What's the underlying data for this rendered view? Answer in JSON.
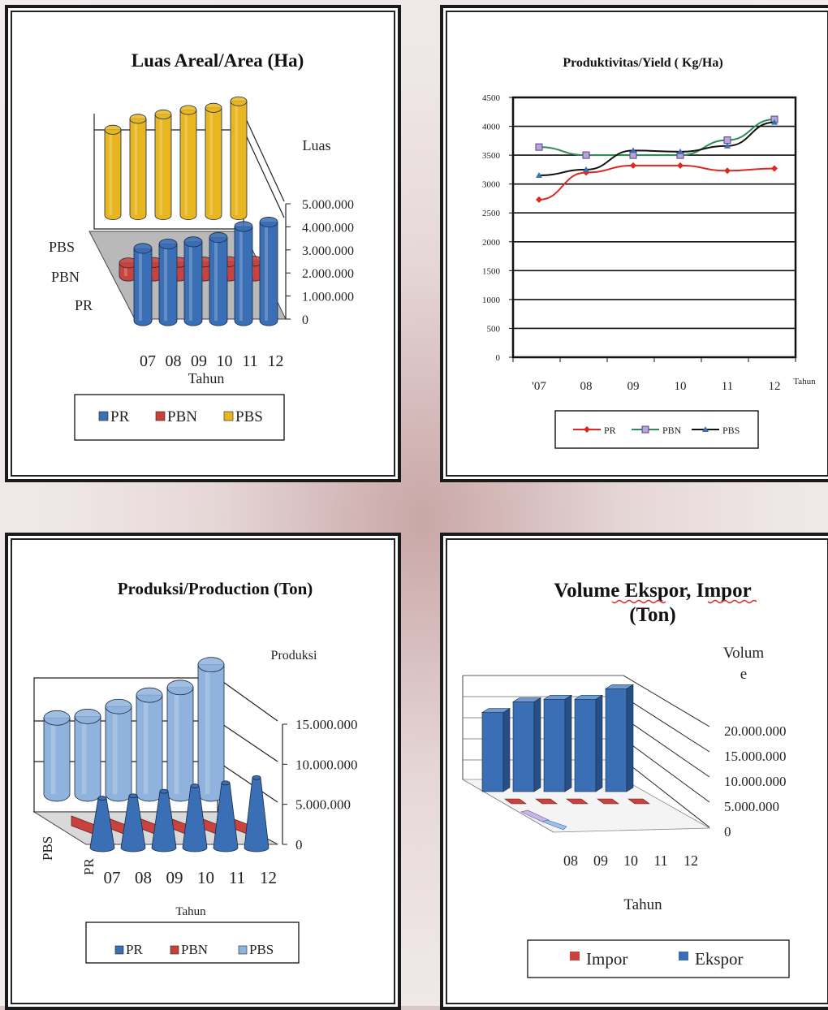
{
  "colors": {
    "pr": "#3a6fb5",
    "pbn": "#c8433d",
    "pbs_area": "#e7b620",
    "pbs_prod": "#8fb3dc",
    "line_pr": "#e0261f",
    "line_pbn": "#2e8b57",
    "line_pbs": "#111111",
    "impor": "#c8433d",
    "ekspor": "#3a6fb5"
  },
  "chart_data": [
    {
      "type": "bar",
      "style": "3d-cylinder",
      "title": "Luas Areal/Area (Ha)",
      "xlabel": "Tahun",
      "ylabel": "Luas",
      "categories": [
        "07",
        "08",
        "09",
        "10",
        "11",
        "12"
      ],
      "depth_labels": [
        "PBS",
        "PBN",
        "PR"
      ],
      "ytick_labels": [
        "5.000.000",
        "4.000.000",
        "3.000.000",
        "2.000.000",
        "1.000.000",
        "0"
      ],
      "ylim": [
        0,
        5000000
      ],
      "series": [
        {
          "name": "PR",
          "values": [
            3300000,
            3500000,
            3600000,
            3800000,
            4300000,
            4500000
          ]
        },
        {
          "name": "PBN",
          "values": [
            600000,
            620000,
            630000,
            640000,
            660000,
            680000
          ]
        },
        {
          "name": "PBS",
          "values": [
            3900000,
            4400000,
            4600000,
            4800000,
            4900000,
            5200000
          ]
        }
      ],
      "legend": [
        "PR",
        "PBN",
        "PBS"
      ],
      "legend_position": "bottom"
    },
    {
      "type": "line",
      "title": "Produktivitas/Yield ( Kg/Ha)",
      "xlabel": "Tahun",
      "categories": [
        "'07",
        "08",
        "09",
        "10",
        "11",
        "12"
      ],
      "ytick_labels": [
        "4500",
        "4000",
        "3500",
        "3000",
        "2500",
        "2000",
        "1500",
        "1000",
        "500",
        "0"
      ],
      "ylim": [
        0,
        4500
      ],
      "grid": true,
      "series": [
        {
          "name": "PR",
          "values": [
            2730,
            3200,
            3320,
            3320,
            3230,
            3270
          ]
        },
        {
          "name": "PBN",
          "values": [
            3640,
            3500,
            3500,
            3500,
            3760,
            4120
          ]
        },
        {
          "name": "PBS",
          "values": [
            3150,
            3250,
            3580,
            3560,
            3660,
            4070
          ]
        }
      ],
      "legend": [
        "PR",
        "PBN",
        "PBS"
      ],
      "legend_position": "bottom"
    },
    {
      "type": "bar",
      "style": "3d-cylinder",
      "title": "Produksi/Production (Ton)",
      "xlabel": "Tahun",
      "ylabel": "Produksi",
      "categories": [
        "07",
        "08",
        "09",
        "10",
        "11",
        "12"
      ],
      "depth_labels": [
        "PBS",
        "PR"
      ],
      "ytick_labels": [
        "15.000.000",
        "10.000.000",
        "5.000.000",
        "0"
      ],
      "ylim": [
        0,
        20000000
      ],
      "series": [
        {
          "name": "PR",
          "values": [
            6500000,
            6800000,
            7400000,
            8100000,
            8500000,
            9200000
          ]
        },
        {
          "name": "PBN",
          "values": [
            2100000,
            2200000,
            2300000,
            2400000,
            2500000,
            2600000
          ]
        },
        {
          "name": "PBS",
          "values": [
            10000000,
            10200000,
            11500000,
            13000000,
            14000000,
            17000000
          ]
        }
      ],
      "legend": [
        "PR",
        "PBN",
        "PBS"
      ],
      "legend_position": "bottom"
    },
    {
      "type": "bar",
      "style": "3d-column",
      "title_line1": "Volume Ekspor, Impor",
      "title_line2": "(Ton)",
      "xlabel": "Tahun",
      "ylabel_line1": "Volum",
      "ylabel_line2": "e",
      "categories": [
        "08",
        "09",
        "10",
        "11",
        "12"
      ],
      "ytick_labels": [
        "20.000.000",
        "15.000.000",
        "10.000.000",
        "5.000.000",
        "0"
      ],
      "ylim": [
        0,
        20000000
      ],
      "series": [
        {
          "name": "Ekspor",
          "values": [
            15000000,
            17000000,
            17500000,
            17500000,
            19500000
          ]
        },
        {
          "name": "Impor",
          "values": [
            150000,
            150000,
            150000,
            150000,
            150000
          ]
        }
      ],
      "legend": [
        "Impor",
        "Ekspor"
      ],
      "legend_position": "bottom"
    }
  ]
}
